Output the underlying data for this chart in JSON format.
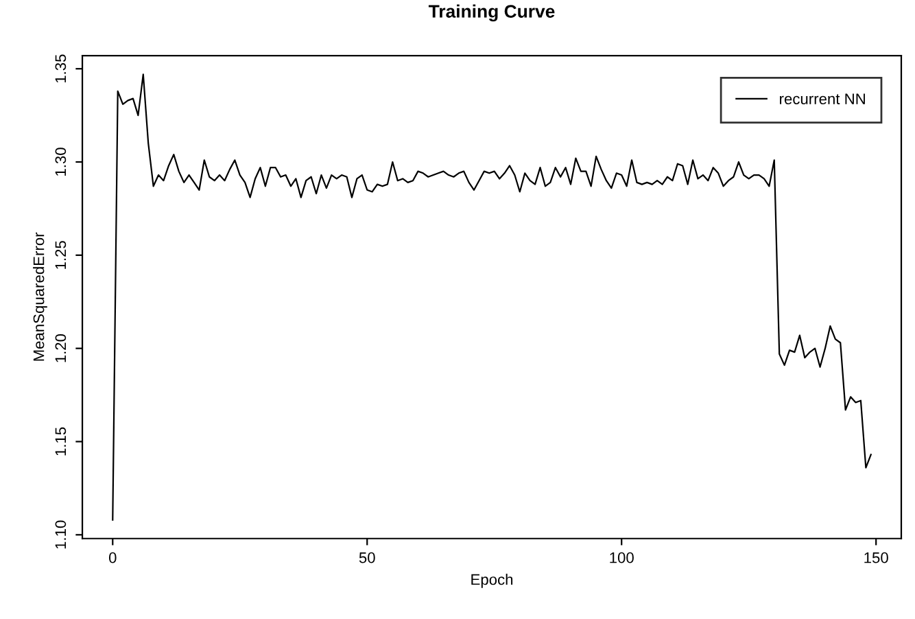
{
  "chart_data": {
    "type": "line",
    "title": "Training Curve",
    "xlabel": "Epoch",
    "ylabel": "MeanSquaredError",
    "x": [
      0,
      1,
      2,
      3,
      4,
      5,
      6,
      7,
      8,
      9,
      10,
      11,
      12,
      13,
      14,
      15,
      16,
      17,
      18,
      19,
      20,
      21,
      22,
      23,
      24,
      25,
      26,
      27,
      28,
      29,
      30,
      31,
      32,
      33,
      34,
      35,
      36,
      37,
      38,
      39,
      40,
      41,
      42,
      43,
      44,
      45,
      46,
      47,
      48,
      49,
      50,
      51,
      52,
      53,
      54,
      55,
      56,
      57,
      58,
      59,
      60,
      61,
      62,
      63,
      64,
      65,
      66,
      67,
      68,
      69,
      70,
      71,
      72,
      73,
      74,
      75,
      76,
      77,
      78,
      79,
      80,
      81,
      82,
      83,
      84,
      85,
      86,
      87,
      88,
      89,
      90,
      91,
      92,
      93,
      94,
      95,
      96,
      97,
      98,
      99,
      100,
      101,
      102,
      103,
      104,
      105,
      106,
      107,
      108,
      109,
      110,
      111,
      112,
      113,
      114,
      115,
      116,
      117,
      118,
      119,
      120,
      121,
      122,
      123,
      124,
      125,
      126,
      127,
      128,
      129,
      130,
      131,
      132,
      133,
      134,
      135,
      136,
      137,
      138,
      139,
      140,
      141,
      142,
      143,
      144,
      145,
      146,
      147,
      148,
      149
    ],
    "series": [
      {
        "name": "recurrent NN",
        "color": "#000000",
        "values": [
          1.108,
          1.338,
          1.331,
          1.333,
          1.334,
          1.325,
          1.347,
          1.31,
          1.287,
          1.293,
          1.29,
          1.298,
          1.304,
          1.295,
          1.289,
          1.293,
          1.289,
          1.285,
          1.301,
          1.292,
          1.29,
          1.293,
          1.29,
          1.296,
          1.301,
          1.293,
          1.289,
          1.281,
          1.291,
          1.297,
          1.287,
          1.297,
          1.297,
          1.292,
          1.293,
          1.287,
          1.291,
          1.281,
          1.29,
          1.292,
          1.283,
          1.293,
          1.286,
          1.293,
          1.291,
          1.293,
          1.292,
          1.281,
          1.291,
          1.293,
          1.285,
          1.284,
          1.288,
          1.287,
          1.288,
          1.3,
          1.29,
          1.291,
          1.289,
          1.29,
          1.295,
          1.294,
          1.292,
          1.293,
          1.294,
          1.295,
          1.293,
          1.292,
          1.294,
          1.295,
          1.289,
          1.285,
          1.29,
          1.295,
          1.294,
          1.295,
          1.291,
          1.294,
          1.298,
          1.293,
          1.284,
          1.294,
          1.29,
          1.288,
          1.297,
          1.287,
          1.289,
          1.297,
          1.292,
          1.297,
          1.288,
          1.302,
          1.295,
          1.295,
          1.287,
          1.303,
          1.296,
          1.29,
          1.286,
          1.294,
          1.293,
          1.287,
          1.301,
          1.289,
          1.288,
          1.289,
          1.288,
          1.29,
          1.288,
          1.292,
          1.29,
          1.299,
          1.298,
          1.288,
          1.301,
          1.291,
          1.293,
          1.29,
          1.297,
          1.294,
          1.287,
          1.29,
          1.292,
          1.3,
          1.293,
          1.291,
          1.293,
          1.293,
          1.291,
          1.287,
          1.301,
          1.197,
          1.191,
          1.199,
          1.198,
          1.207,
          1.195,
          1.198,
          1.2,
          1.19,
          1.2,
          1.212,
          1.205,
          1.203,
          1.167,
          1.174,
          1.171,
          1.172,
          1.136,
          1.143
        ]
      }
    ],
    "xlim": [
      -5.96,
      154.96
    ],
    "ylim": [
      1.098,
      1.357
    ],
    "xticks": [
      0,
      50,
      100,
      150
    ],
    "yticks": [
      {
        "value": 1.1,
        "label": "1.10"
      },
      1.15,
      {
        "value": 1.2,
        "label": "1.20"
      },
      1.25,
      {
        "value": 1.3,
        "label": "1.30"
      },
      1.35
    ],
    "grid": false,
    "legend": "top right",
    "marker": "none",
    "line_style": "solid"
  }
}
